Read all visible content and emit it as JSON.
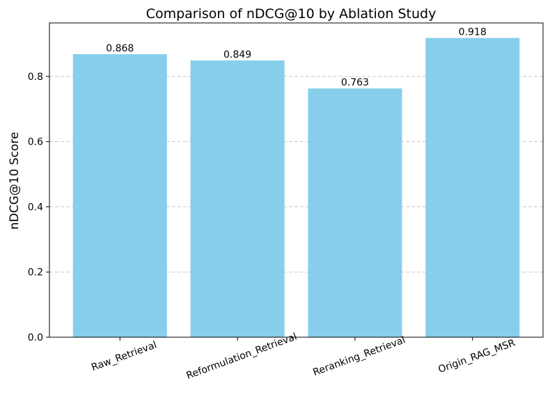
{
  "chart_data": {
    "type": "bar",
    "title": "Comparison of nDCG@10 by Ablation Study",
    "xlabel": "",
    "ylabel": "nDCG@10 Score",
    "categories": [
      "Raw_Retrieval",
      "Reformulation_Retrieval",
      "Reranking_Retrieval",
      "Origin_RAG_MSR"
    ],
    "values": [
      0.868,
      0.849,
      0.763,
      0.918
    ],
    "value_labels": [
      "0.868",
      "0.849",
      "0.763",
      "0.918"
    ],
    "ylim": [
      0,
      0.964
    ],
    "yticks": [
      0.0,
      0.2,
      0.4,
      0.6,
      0.8
    ],
    "ytick_labels": [
      "0.0",
      "0.2",
      "0.4",
      "0.6",
      "0.8"
    ],
    "grid": "y-dashed",
    "bar_color": "#87CEEB",
    "grid_color": "#c8c8c8",
    "xtick_rotation_deg": -20
  }
}
